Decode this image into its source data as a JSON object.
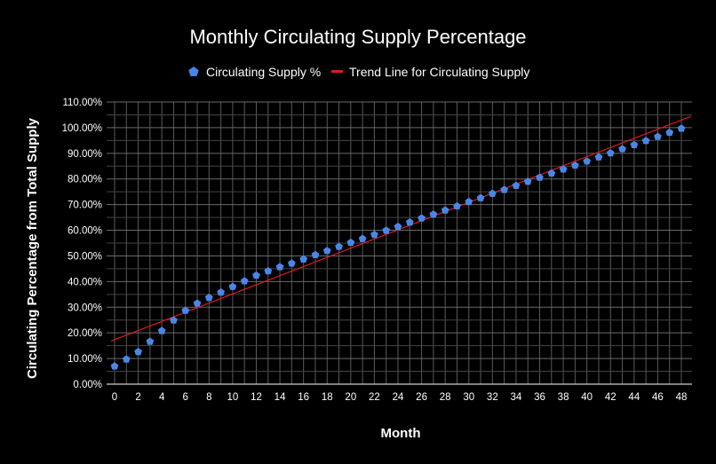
{
  "chart_data": {
    "type": "scatter",
    "title": "Monthly Circulating Supply Percentage",
    "xlabel": "Month",
    "ylabel": "Circulating Percentage from Total Supply",
    "xlim": [
      0,
      48
    ],
    "ylim": [
      0,
      110
    ],
    "x_ticks": [
      0,
      2,
      4,
      6,
      8,
      10,
      12,
      14,
      16,
      18,
      20,
      22,
      24,
      26,
      28,
      30,
      32,
      34,
      36,
      38,
      40,
      42,
      44,
      46,
      48
    ],
    "x_tick_labels": [
      "0",
      "2",
      "4",
      "6",
      "8",
      "10",
      "12",
      "14",
      "16",
      "18",
      "20",
      "22",
      "24",
      "26",
      "28",
      "30",
      "32",
      "34",
      "36",
      "38",
      "40",
      "42",
      "44",
      "46",
      "48"
    ],
    "y_ticks": [
      0,
      10,
      20,
      30,
      40,
      50,
      60,
      70,
      80,
      90,
      100,
      110
    ],
    "y_tick_labels": [
      "0.00%",
      "10.00%",
      "20.00%",
      "30.00%",
      "40.00%",
      "50.00%",
      "60.00%",
      "70.00%",
      "80.00%",
      "90.00%",
      "100.00%",
      "110.00%"
    ],
    "grid": true,
    "legend_position": "top-center",
    "series": [
      {
        "name": "Circulating Supply %",
        "color": "#4a86e8",
        "marker": "pentagon",
        "x": [
          0,
          1,
          2,
          3,
          4,
          5,
          6,
          7,
          8,
          9,
          10,
          11,
          12,
          13,
          14,
          15,
          16,
          17,
          18,
          19,
          20,
          21,
          22,
          23,
          24,
          25,
          26,
          27,
          28,
          29,
          30,
          31,
          32,
          33,
          34,
          35,
          36,
          37,
          38,
          39,
          40,
          41,
          42,
          43,
          44,
          45,
          46,
          47,
          48
        ],
        "values": [
          7.2,
          9.9,
          12.8,
          16.8,
          21.0,
          25.1,
          28.9,
          31.7,
          33.9,
          36.0,
          38.2,
          40.4,
          42.6,
          44.3,
          45.9,
          47.3,
          48.9,
          50.6,
          52.2,
          53.8,
          55.4,
          56.9,
          58.5,
          60.1,
          61.6,
          63.3,
          64.9,
          66.4,
          68.0,
          69.6,
          71.3,
          72.8,
          74.5,
          76.0,
          77.6,
          79.2,
          80.8,
          82.4,
          84.0,
          85.5,
          87.1,
          88.7,
          90.3,
          91.9,
          93.5,
          95.1,
          96.7,
          98.3,
          99.9
        ]
      },
      {
        "name": "Trend Line for Circulating Supply",
        "color": "#e01b1b",
        "type": "line",
        "x": [
          -0.3,
          48.8
        ],
        "values": [
          16.8,
          104.4
        ]
      }
    ]
  }
}
